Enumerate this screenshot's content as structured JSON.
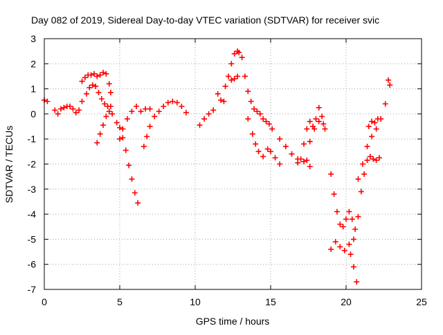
{
  "chart_data": {
    "type": "scatter",
    "title": "Day 082 of 2019, Sidereal Day-to-day VTEC variation (SDTVAR) for receiver svic",
    "xlabel": "GPS time / hours",
    "ylabel": "SDTVAR / TECUs",
    "xlim": [
      0,
      25
    ],
    "ylim": [
      -7,
      3
    ],
    "xticks": [
      0,
      5,
      10,
      15,
      20,
      25
    ],
    "yticks": [
      -7,
      -6,
      -5,
      -4,
      -3,
      -2,
      -1,
      0,
      1,
      2,
      3
    ],
    "grid": true,
    "marker": "+",
    "color": "#ff0000",
    "series": [
      {
        "name": "SDTVAR",
        "x": [
          0.0,
          0.2,
          0.7,
          0.9,
          1.1,
          1.3,
          1.5,
          1.7,
          1.9,
          2.1,
          2.3,
          2.5,
          2.5,
          2.7,
          2.9,
          3.1,
          3.3,
          3.5,
          3.7,
          3.9,
          4.1,
          4.3,
          4.4,
          2.8,
          3.0,
          3.2,
          3.4,
          3.6,
          3.8,
          4.0,
          4.2,
          4.4,
          3.5,
          3.7,
          3.9,
          4.1,
          4.3,
          4.5,
          4.8,
          5.0,
          5.2,
          5.4,
          5.6,
          5.8,
          6.0,
          6.2,
          5.0,
          5.2,
          5.5,
          5.8,
          6.1,
          6.4,
          6.7,
          7.0,
          6.6,
          6.8,
          7.0,
          7.3,
          7.6,
          7.9,
          8.2,
          8.5,
          8.8,
          9.1,
          9.4,
          10.3,
          10.6,
          10.9,
          11.2,
          11.5,
          11.7,
          11.9,
          12.0,
          12.2,
          12.4,
          12.6,
          12.8,
          12.4,
          12.6,
          12.8,
          12.9,
          13.1,
          13.3,
          13.5,
          13.7,
          13.9,
          14.1,
          14.3,
          14.5,
          14.7,
          14.9,
          15.1,
          13.5,
          13.8,
          14.0,
          14.2,
          14.5,
          14.8,
          15.0,
          15.3,
          15.6,
          15.6,
          16.0,
          16.4,
          16.8,
          17.2,
          17.4,
          17.6,
          16.8,
          17.0,
          17.2,
          17.4,
          17.6,
          17.8,
          18.0,
          18.2,
          18.4,
          18.6,
          17.6,
          17.9,
          18.2,
          18.5,
          19.0,
          19.2,
          19.4,
          19.6,
          19.8,
          20.0,
          20.2,
          20.4,
          20.6,
          19.0,
          19.3,
          19.6,
          19.9,
          20.2,
          20.5,
          20.8,
          21.1,
          21.4,
          21.7,
          22.0,
          22.3,
          22.6,
          20.3,
          20.5,
          20.7,
          20.8,
          21.0,
          21.2,
          21.4,
          21.6,
          21.8,
          22.0,
          22.2,
          21.5,
          21.7,
          21.9,
          22.1,
          22.8,
          22.9
        ],
        "y": [
          0.55,
          0.5,
          0.15,
          0.0,
          0.2,
          0.25,
          0.3,
          0.3,
          0.2,
          0.05,
          0.15,
          0.5,
          1.3,
          1.45,
          1.55,
          1.55,
          1.6,
          1.5,
          1.55,
          1.65,
          1.6,
          1.2,
          0.85,
          0.8,
          1.05,
          1.15,
          1.1,
          0.85,
          0.6,
          0.4,
          0.3,
          0.3,
          -1.15,
          -0.8,
          -0.45,
          -0.1,
          0.1,
          0.0,
          -0.35,
          -0.55,
          -0.95,
          -1.45,
          -2.05,
          -2.6,
          -3.15,
          -3.55,
          -1.0,
          -0.6,
          -0.2,
          0.1,
          0.3,
          0.1,
          0.2,
          0.2,
          -1.3,
          -0.9,
          -0.5,
          -0.1,
          0.1,
          0.3,
          0.45,
          0.5,
          0.45,
          0.3,
          0.05,
          -0.45,
          -0.2,
          0.0,
          0.15,
          0.8,
          0.55,
          0.5,
          1.1,
          1.5,
          2.0,
          2.4,
          2.5,
          1.35,
          1.4,
          1.5,
          2.45,
          2.25,
          1.5,
          0.9,
          0.5,
          0.2,
          0.1,
          0.0,
          -0.2,
          -0.3,
          -0.4,
          -0.6,
          -0.2,
          -0.8,
          -1.2,
          -1.5,
          -1.7,
          -1.4,
          -1.5,
          -1.75,
          -2.0,
          -1.0,
          -1.3,
          -1.6,
          -1.8,
          -1.9,
          -1.85,
          -2.1,
          -1.95,
          -1.8,
          -1.2,
          -0.6,
          -0.3,
          -0.5,
          -0.2,
          0.25,
          -0.1,
          -0.6,
          -1.1,
          -0.6,
          -0.3,
          -0.4,
          -2.4,
          -3.2,
          -3.9,
          -4.4,
          -4.5,
          -4.2,
          -3.9,
          -4.2,
          -4.6,
          -5.4,
          -5.1,
          -5.3,
          -5.45,
          -5.2,
          -5.0,
          -2.6,
          -2.0,
          -1.3,
          -0.9,
          -0.6,
          -0.2,
          0.4,
          -5.6,
          -6.1,
          -6.7,
          -4.1,
          -3.1,
          -2.4,
          -1.85,
          -1.7,
          -1.8,
          -1.85,
          -1.75,
          -0.5,
          -0.3,
          -0.35,
          -0.2,
          1.35,
          1.15
        ]
      }
    ]
  }
}
